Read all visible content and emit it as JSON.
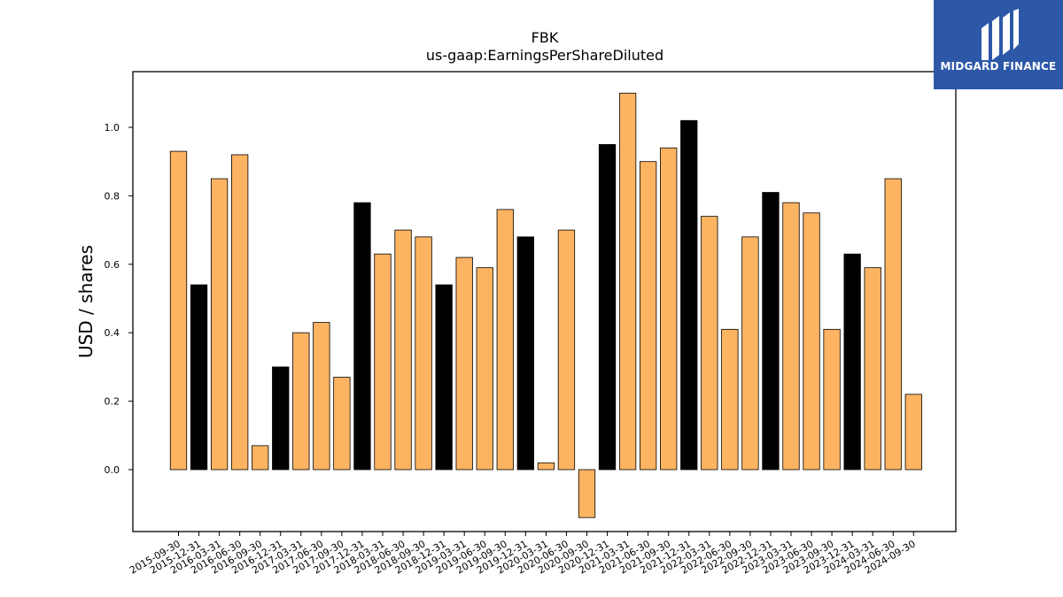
{
  "brand": {
    "name": "MIDGARD FINANCE",
    "color": "#2d58a8",
    "icon": "midgard-logo-icon"
  },
  "chart_data": {
    "type": "bar",
    "title": "FBK",
    "subtitle": "us-gaap:EarningsPerShareDiluted",
    "xlabel": "",
    "ylabel": "USD / shares",
    "ylim": [
      -0.18,
      1.16
    ],
    "yticks": [
      0.0,
      0.2,
      0.4,
      0.6,
      0.8,
      1.0
    ],
    "ytick_labels": [
      "0.0",
      "0.2",
      "0.4",
      "0.6",
      "0.8",
      "1.0"
    ],
    "grid": false,
    "colors": {
      "quarter": "#fdb462",
      "annual": "#000000",
      "edge": "#000000"
    },
    "categories": [
      "2015-09-30",
      "2015-12-31",
      "2016-03-31",
      "2016-06-30",
      "2016-09-30",
      "2016-12-31",
      "2017-03-31",
      "2017-06-30",
      "2017-09-30",
      "2017-12-31",
      "2018-03-31",
      "2018-06-30",
      "2018-09-30",
      "2018-12-31",
      "2019-03-31",
      "2019-06-30",
      "2019-09-30",
      "2019-12-31",
      "2020-03-31",
      "2020-06-30",
      "2020-09-30",
      "2020-12-31",
      "2021-03-31",
      "2021-06-30",
      "2021-09-30",
      "2021-12-31",
      "2022-03-31",
      "2022-06-30",
      "2022-09-30",
      "2022-12-31",
      "2023-03-31",
      "2023-06-30",
      "2023-09-30",
      "2023-12-31",
      "2024-03-31",
      "2024-06-30",
      "2024-09-30"
    ],
    "values": [
      0.93,
      0.54,
      0.85,
      0.92,
      0.07,
      0.3,
      0.4,
      0.43,
      0.27,
      0.78,
      0.63,
      0.7,
      0.68,
      0.54,
      0.62,
      0.59,
      0.76,
      0.68,
      0.02,
      0.7,
      -0.14,
      0.95,
      1.1,
      0.9,
      0.94,
      1.02,
      0.74,
      0.41,
      0.68,
      0.81,
      0.78,
      0.75,
      0.41,
      0.63,
      0.59,
      0.85,
      0.22
    ],
    "annual": [
      false,
      true,
      false,
      false,
      false,
      true,
      false,
      false,
      false,
      true,
      false,
      false,
      false,
      true,
      false,
      false,
      false,
      true,
      false,
      false,
      false,
      true,
      false,
      false,
      false,
      true,
      false,
      false,
      false,
      true,
      false,
      false,
      false,
      true,
      false,
      false,
      false
    ]
  }
}
